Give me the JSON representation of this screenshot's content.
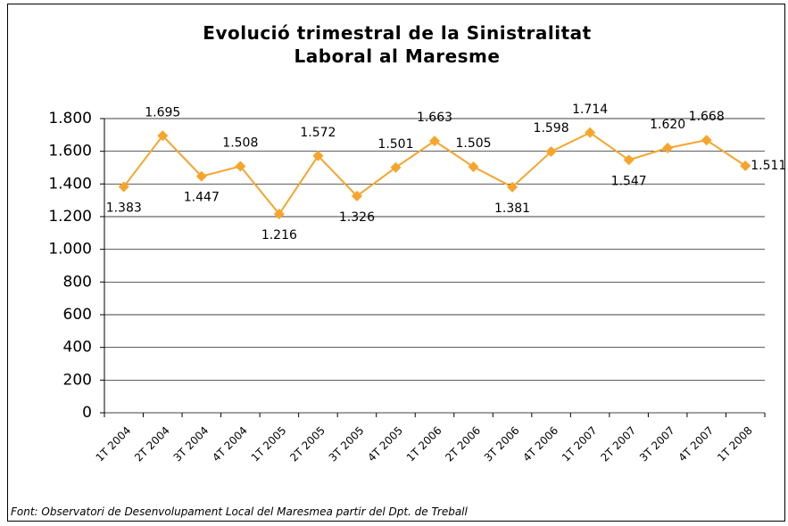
{
  "chart_data": {
    "type": "line",
    "title": "Evolució trimestral de la Sinistralitat Laboral al Maresme",
    "source": "Font: Observatori de Desenvolupament Local del Maresmea partir del Dpt. de Treball",
    "categories": [
      "1T 2004",
      "2T 2004",
      "3T 2004",
      "4T 2004",
      "1T 2005",
      "2T 2005",
      "3T 2005",
      "4T 2005",
      "1T 2006",
      "2T 2006",
      "3T 2006",
      "4T 2006",
      "1T 2007",
      "2T 2007",
      "3T 2007",
      "4T 2007",
      "1T 2008"
    ],
    "series": [
      {
        "name": "Sinistralitat Laboral",
        "color": "#f7a42c",
        "values": [
          1383,
          1695,
          1447,
          1508,
          1216,
          1572,
          1326,
          1501,
          1663,
          1505,
          1381,
          1598,
          1714,
          1547,
          1620,
          1668,
          1511
        ],
        "value_labels": [
          "1.383",
          "1.695",
          "1.447",
          "1.508",
          "1.216",
          "1.572",
          "1.326",
          "1.501",
          "1.663",
          "1.505",
          "1.381",
          "1.598",
          "1.714",
          "1.547",
          "1.620",
          "1.668",
          "1.511"
        ]
      }
    ],
    "ylim": [
      0,
      1800
    ],
    "yticks": [
      0,
      200,
      400,
      600,
      800,
      {
        "value": 1000,
        "label": "1.000"
      },
      {
        "value": 1200,
        "label": "1.200"
      },
      {
        "value": 1400,
        "label": "1.400"
      },
      {
        "value": 1600,
        "label": "1.600"
      },
      {
        "value": 1800,
        "label": "1.800"
      }
    ],
    "grid": true
  }
}
